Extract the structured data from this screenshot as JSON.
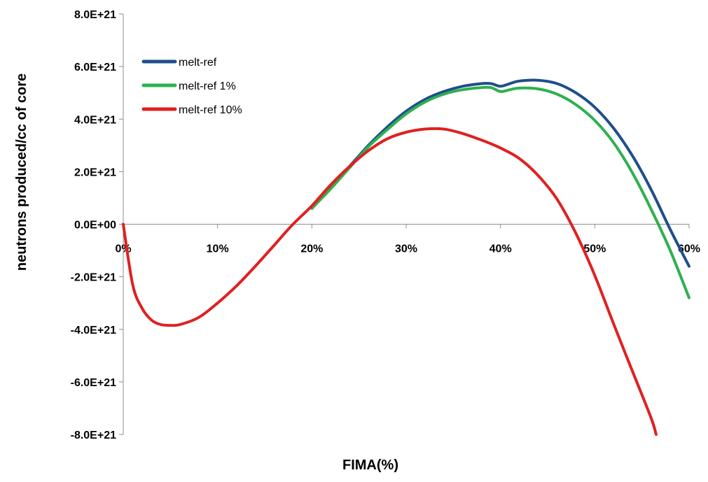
{
  "chart_data": {
    "type": "line",
    "xlabel": "FIMA(%)",
    "ylabel": "neutrons produced/cc of core",
    "xlim": [
      0,
      60
    ],
    "ylim": [
      -8e+21,
      8e+21
    ],
    "x_ticks": [
      0,
      10,
      20,
      30,
      40,
      50,
      60
    ],
    "x_tick_labels": [
      "0%",
      "10%",
      "20%",
      "30%",
      "40%",
      "50%",
      "60%"
    ],
    "y_ticks": [
      8e+21,
      6e+21,
      4e+21,
      2e+21,
      0,
      -2e+21,
      -4e+21,
      -6e+21,
      -8e+21
    ],
    "y_tick_labels": [
      "8.0E+21",
      "6.0E+21",
      "4.0E+21",
      "2.0E+21",
      "0.0E+00",
      "-2.0E+21",
      "-4.0E+21",
      "-6.0E+21",
      "-8.0E+21"
    ],
    "grid": false,
    "legend_position": "top-left",
    "series": [
      {
        "name": "melt-ref",
        "color": "#1f4e8c",
        "x": [
          20,
          22,
          24,
          26,
          28,
          30,
          32,
          34,
          36,
          38,
          39,
          40,
          41,
          42,
          44,
          46,
          48,
          50,
          52,
          54,
          56,
          58,
          60
        ],
        "y": [
          6e+20,
          1.4e+21,
          2.2e+21,
          3e+21,
          3.7e+21,
          4.3e+21,
          4.75e+21,
          5.05e+21,
          5.25e+21,
          5.35e+21,
          5.35e+21,
          5.25e+21,
          5.35e+21,
          5.45e+21,
          5.48e+21,
          5.35e+21,
          5e+21,
          4.45e+21,
          3.65e+21,
          2.6e+21,
          1.3e+21,
          -2e+20,
          -1.6e+21
        ]
      },
      {
        "name": "melt-ref 1%",
        "color": "#2eb04f",
        "x": [
          20,
          22,
          24,
          26,
          28,
          30,
          32,
          34,
          36,
          38,
          39,
          40,
          41,
          42,
          44,
          46,
          48,
          50,
          52,
          54,
          56,
          58,
          60
        ],
        "y": [
          6e+20,
          1.35e+21,
          2.15e+21,
          2.95e+21,
          3.6e+21,
          4.2e+21,
          4.65e+21,
          4.95e+21,
          5.12e+21,
          5.2e+21,
          5.2e+21,
          5.05e+21,
          5.12e+21,
          5.18e+21,
          5.15e+21,
          4.95e+21,
          4.55e+21,
          3.95e+21,
          3.1e+21,
          1.95e+21,
          5.5e+20,
          -1e+21,
          -2.8e+21
        ]
      },
      {
        "name": "melt-ref 10%",
        "color": "#e02020",
        "x": [
          0,
          1,
          2,
          3,
          4,
          5,
          6,
          8,
          10,
          12,
          14,
          16,
          18,
          20,
          22,
          24,
          26,
          28,
          30,
          32,
          34,
          36,
          38,
          40,
          42,
          44,
          46,
          48,
          50,
          52,
          54,
          56,
          56.5
        ],
        "y": [
          0,
          -2.3e+21,
          -3.2e+21,
          -3.65e+21,
          -3.82e+21,
          -3.85e+21,
          -3.82e+21,
          -3.55e+21,
          -3e+21,
          -2.35e+21,
          -1.6e+21,
          -8e+20,
          0,
          7e+20,
          1.5e+21,
          2.2e+21,
          2.8e+21,
          3.25e+21,
          3.5e+21,
          3.62e+21,
          3.62e+21,
          3.45e+21,
          3.2e+21,
          2.9e+21,
          2.5e+21,
          1.85e+21,
          9.5e+20,
          -3.5e+20,
          -1.95e+21,
          -3.8e+21,
          -5.6e+21,
          -7.4e+21,
          -8e+21
        ]
      }
    ]
  }
}
